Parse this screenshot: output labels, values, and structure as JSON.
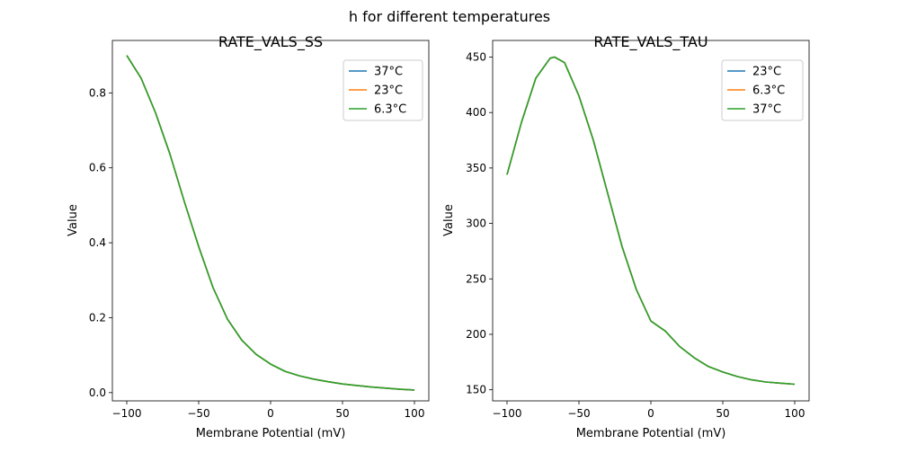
{
  "suptitle": "h for different temperatures",
  "chart_data": [
    {
      "type": "line",
      "title": "RATE_VALS_SS",
      "xlabel": "Membrane Potential (mV)",
      "ylabel": "Value",
      "xlim": [
        -110,
        110
      ],
      "ylim": [
        -0.022,
        0.94
      ],
      "xticks": [
        -100,
        -50,
        0,
        50,
        100
      ],
      "yticks": [
        0.0,
        0.2,
        0.4,
        0.6,
        0.8
      ],
      "ytick_labels": [
        "0.0",
        "0.2",
        "0.4",
        "0.6",
        "0.8"
      ],
      "grid": false,
      "legend_position": "top-right",
      "x": [
        -100,
        -90,
        -80,
        -70,
        -60,
        -50,
        -40,
        -30,
        -20,
        -10,
        0,
        10,
        20,
        30,
        40,
        50,
        60,
        70,
        80,
        90,
        100
      ],
      "series": [
        {
          "name": "37°C",
          "color": "#1f77b4",
          "values": [
            0.9,
            0.839,
            0.747,
            0.637,
            0.51,
            0.39,
            0.28,
            0.196,
            0.14,
            0.102,
            0.076,
            0.057,
            0.045,
            0.036,
            0.029,
            0.023,
            0.019,
            0.015,
            0.012,
            0.009,
            0.007
          ]
        },
        {
          "name": "23°C",
          "color": "#ff7f0e",
          "values": [
            0.9,
            0.839,
            0.747,
            0.637,
            0.51,
            0.39,
            0.28,
            0.196,
            0.14,
            0.102,
            0.076,
            0.057,
            0.045,
            0.036,
            0.029,
            0.023,
            0.019,
            0.015,
            0.012,
            0.009,
            0.007
          ]
        },
        {
          "name": "6.3°C",
          "color": "#2ca02c",
          "values": [
            0.9,
            0.839,
            0.747,
            0.637,
            0.51,
            0.39,
            0.28,
            0.196,
            0.14,
            0.102,
            0.076,
            0.057,
            0.045,
            0.036,
            0.029,
            0.023,
            0.019,
            0.015,
            0.012,
            0.009,
            0.007
          ]
        }
      ]
    },
    {
      "type": "line",
      "title": "RATE_VALS_TAU",
      "xlabel": "Membrane Potential (mV)",
      "ylabel": "Value",
      "xlim": [
        -110,
        110
      ],
      "ylim": [
        140,
        465
      ],
      "xticks": [
        -100,
        -50,
        0,
        50,
        100
      ],
      "yticks": [
        150,
        200,
        250,
        300,
        350,
        400,
        450
      ],
      "ytick_labels": [
        "150",
        "200",
        "250",
        "300",
        "350",
        "400",
        "450"
      ],
      "grid": false,
      "legend_position": "top-right",
      "x": [
        -100,
        -90,
        -80,
        -70,
        -67,
        -60,
        -50,
        -40,
        -30,
        -20,
        -10,
        0,
        10,
        20,
        30,
        40,
        50,
        60,
        70,
        80,
        90,
        100
      ],
      "series": [
        {
          "name": "23°C",
          "color": "#1f77b4",
          "values": [
            344,
            391,
            431,
            449,
            450,
            445,
            415,
            375,
            327,
            279,
            240,
            212,
            203,
            189,
            179,
            171,
            166,
            162,
            159,
            157,
            156,
            155
          ]
        },
        {
          "name": "6.3°C",
          "color": "#ff7f0e",
          "values": [
            344,
            391,
            431,
            449,
            450,
            445,
            415,
            375,
            327,
            279,
            240,
            212,
            203,
            189,
            179,
            171,
            166,
            162,
            159,
            157,
            156,
            155
          ]
        },
        {
          "name": "37°C",
          "color": "#2ca02c",
          "values": [
            344,
            391,
            431,
            449,
            450,
            445,
            415,
            375,
            327,
            279,
            240,
            212,
            203,
            189,
            179,
            171,
            166,
            162,
            159,
            157,
            156,
            155
          ]
        }
      ]
    }
  ]
}
